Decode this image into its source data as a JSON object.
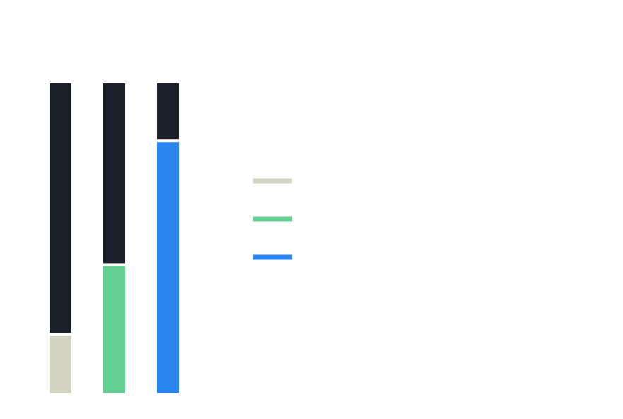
{
  "chart_data": {
    "type": "bar",
    "stacked": true,
    "categories": [
      "",
      "",
      ""
    ],
    "series": [
      {
        "values": [
          18.5,
          41,
          81
        ],
        "color": "#d3d5c2"
      },
      {
        "values": [
          81.5,
          59,
          19
        ],
        "color": "#191e28"
      }
    ],
    "legend": {
      "placement": "center-right",
      "entries": [
        {
          "color": "#d3d5c2"
        },
        {
          "color": "#64cf93"
        },
        {
          "color": "#2a86ee"
        }
      ]
    },
    "bar_colors": [
      "#d3d5c2",
      "#64cf93",
      "#2a86ee"
    ],
    "track_color": "#191e28",
    "ylim": [
      0,
      100
    ],
    "grid": false,
    "title": "",
    "xlabel": "",
    "ylabel": ""
  }
}
